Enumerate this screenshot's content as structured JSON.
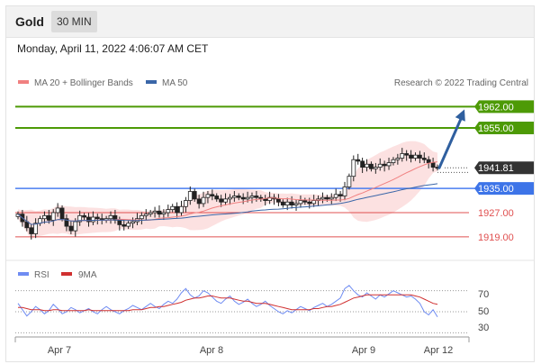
{
  "header": {
    "title": "Gold",
    "timeframe": "30 MIN"
  },
  "datetime": "Monday, April 11, 2022 4:06:07 AM CET",
  "copyright": "Research © 2022 Trading Central",
  "colors": {
    "resistance": "#4d9a06",
    "support_line": "#4a7ef0",
    "minor_support": "#e05050",
    "ma20": "#f08080",
    "ma50": "#3a66a8",
    "band": "#fbdcdc",
    "arrow": "#2f5f9f",
    "rsi": "#6f8cf2",
    "ma9": "#d03030"
  },
  "chart_data": [
    {
      "type": "candlestick",
      "legend": [
        {
          "name": "MA 20 + Bollinger Bands",
          "color": "#f08080"
        },
        {
          "name": "MA 50",
          "color": "#3a66a8"
        }
      ],
      "ylim": [
        1913,
        1966
      ],
      "levels": [
        {
          "value": 1962.0,
          "label": "1962.00",
          "kind": "resistance"
        },
        {
          "value": 1955.0,
          "label": "1955.00",
          "kind": "resistance"
        },
        {
          "value": 1941.81,
          "label": "1941.81",
          "kind": "current"
        },
        {
          "value": 1935.0,
          "label": "1935.00",
          "kind": "support"
        },
        {
          "value": 1927.0,
          "label": "1927.00",
          "kind": "minor_support"
        },
        {
          "value": 1919.0,
          "label": "1919.00",
          "kind": "minor_support"
        }
      ],
      "forecast_arrow": {
        "from": 1941.8,
        "to": 1962.0
      },
      "closes": [
        1926.5,
        1924.0,
        1922.0,
        1920.0,
        1923.5,
        1925.0,
        1926.0,
        1924.5,
        1927.0,
        1928.5,
        1925.0,
        1922.5,
        1921.0,
        1924.0,
        1926.0,
        1925.5,
        1924.0,
        1925.5,
        1925.0,
        1924.5,
        1925.0,
        1926.0,
        1924.5,
        1923.0,
        1922.5,
        1923.5,
        1924.0,
        1925.0,
        1926.0,
        1926.5,
        1927.0,
        1927.5,
        1926.5,
        1927.0,
        1928.0,
        1929.0,
        1927.0,
        1929.0,
        1931.0,
        1934.0,
        1931.5,
        1930.0,
        1932.0,
        1933.0,
        1932.5,
        1931.5,
        1930.5,
        1931.5,
        1932.0,
        1932.5,
        1932.0,
        1931.5,
        1932.0,
        1932.5,
        1932.0,
        1931.5,
        1931.0,
        1932.0,
        1931.5,
        1930.5,
        1929.5,
        1930.5,
        1929.5,
        1930.0,
        1931.0,
        1930.5,
        1930.0,
        1931.0,
        1931.5,
        1932.0,
        1931.5,
        1932.0,
        1933.0,
        1932.5,
        1935.5,
        1939.0,
        1944.5,
        1944.0,
        1942.0,
        1943.0,
        1941.5,
        1942.0,
        1943.0,
        1942.5,
        1943.5,
        1944.5,
        1945.0,
        1946.5,
        1946.0,
        1945.0,
        1946.0,
        1945.0,
        1944.5,
        1943.5,
        1942.0,
        1941.8
      ],
      "x_ticks": [
        "Apr 7",
        "Apr 8",
        "Apr 9",
        "Apr 12"
      ]
    },
    {
      "type": "line",
      "legend": [
        {
          "name": "RSI",
          "color": "#6f8cf2"
        },
        {
          "name": "9MA",
          "color": "#d03030"
        }
      ],
      "ylim": [
        20,
        80
      ],
      "y_ticks": [
        "70",
        "50",
        "30"
      ],
      "series": [
        {
          "name": "RSI",
          "values": [
            58,
            52,
            46,
            50,
            55,
            52,
            48,
            51,
            57,
            53,
            48,
            50,
            54,
            52,
            49,
            51,
            53,
            50,
            48,
            52,
            55,
            52,
            50,
            48,
            51,
            53,
            56,
            54,
            52,
            55,
            58,
            55,
            53,
            57,
            60,
            58,
            62,
            68,
            72,
            66,
            63,
            65,
            70,
            68,
            64,
            60,
            58,
            62,
            65,
            60,
            57,
            59,
            62,
            58,
            55,
            57,
            60,
            56,
            53,
            50,
            48,
            51,
            49,
            52,
            55,
            53,
            51,
            54,
            56,
            58,
            55,
            57,
            60,
            63,
            72,
            75,
            70,
            66,
            64,
            68,
            65,
            62,
            66,
            64,
            67,
            70,
            68,
            66,
            64,
            65,
            62,
            58,
            50,
            47,
            52,
            45
          ]
        },
        {
          "name": "9MA",
          "values": [
            54,
            54,
            53,
            52,
            52,
            52,
            51,
            51,
            52,
            52,
            51,
            51,
            51,
            51,
            51,
            51,
            52,
            51,
            51,
            51,
            51,
            51,
            51,
            51,
            51,
            51,
            52,
            52,
            52,
            53,
            54,
            54,
            55,
            55,
            56,
            57,
            58,
            59,
            61,
            62,
            63,
            63,
            64,
            65,
            65,
            64,
            63,
            63,
            63,
            62,
            61,
            60,
            60,
            59,
            58,
            58,
            58,
            57,
            56,
            55,
            54,
            53,
            52,
            52,
            52,
            52,
            52,
            53,
            53,
            54,
            55,
            55,
            56,
            57,
            59,
            61,
            63,
            64,
            65,
            66,
            66,
            66,
            66,
            66,
            66,
            66,
            66,
            66,
            66,
            66,
            65,
            64,
            62,
            60,
            58,
            57
          ]
        }
      ]
    }
  ]
}
